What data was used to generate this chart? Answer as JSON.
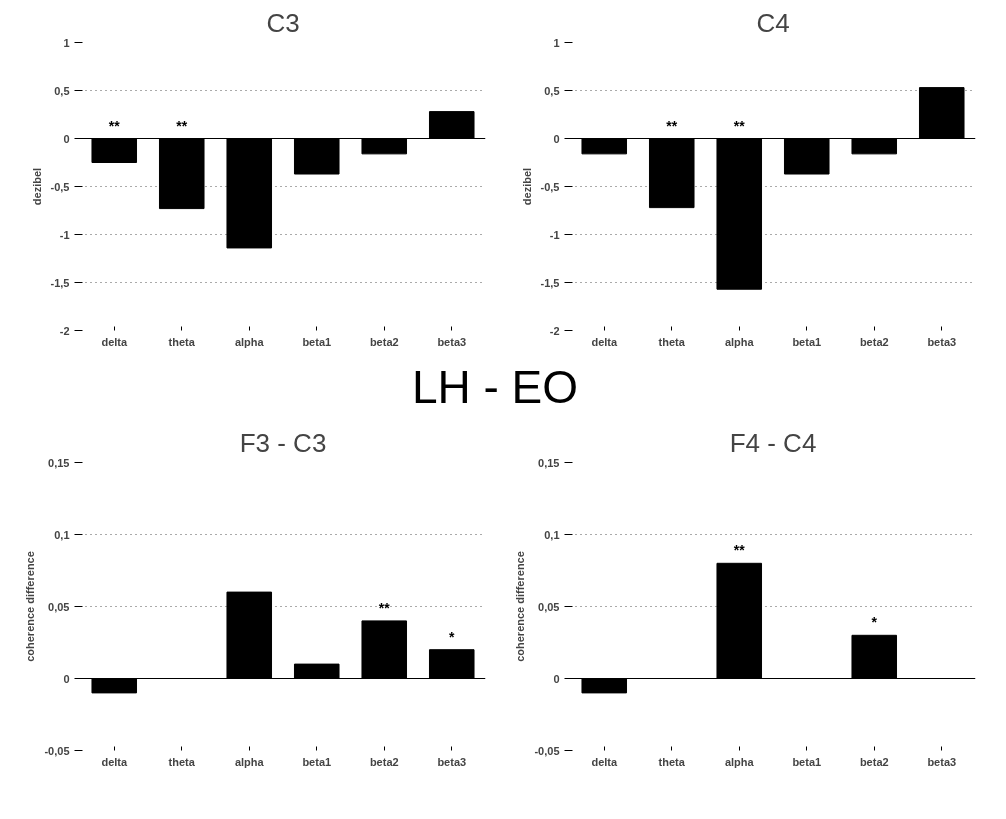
{
  "chart_data": [
    {
      "type": "bar",
      "title": "C3",
      "ylabel": "dezibel",
      "categories": [
        "delta",
        "theta",
        "alpha",
        "beta1",
        "beta2",
        "beta3"
      ],
      "values": [
        -0.25,
        -0.73,
        -1.14,
        -0.37,
        -0.16,
        0.28
      ],
      "color": "#000000",
      "ylim": [
        -2,
        1
      ],
      "yticks": [
        -2,
        {
          "value": -1.5,
          "label": "-1,5"
        },
        -1,
        {
          "value": -0.5,
          "label": "-0,5"
        },
        0,
        {
          "value": 0.5,
          "label": "0,5"
        },
        1
      ],
      "grid": "y",
      "ref_lines": [
        {
          "axis": "y",
          "value": 0,
          "color": "#000000"
        }
      ],
      "annotations": [
        {
          "text": "**",
          "x": "delta",
          "y": 0
        },
        {
          "text": "**",
          "x": "theta",
          "y": 0
        }
      ]
    },
    {
      "type": "bar",
      "title": "C4",
      "ylabel": "dezibel",
      "categories": [
        "delta",
        "theta",
        "alpha",
        "beta1",
        "beta2",
        "beta3"
      ],
      "values": [
        -0.16,
        -0.72,
        -1.57,
        -0.37,
        -0.16,
        0.53
      ],
      "color": "#000000",
      "ylim": [
        -2,
        1
      ],
      "yticks": [
        -2,
        {
          "value": -1.5,
          "label": "-1,5"
        },
        -1,
        {
          "value": -0.5,
          "label": "-0,5"
        },
        0,
        {
          "value": 0.5,
          "label": "0,5"
        },
        1
      ],
      "grid": "y",
      "ref_lines": [
        {
          "axis": "y",
          "value": 0,
          "color": "#000000"
        }
      ],
      "annotations": [
        {
          "text": "**",
          "x": "theta",
          "y": 0
        },
        {
          "text": "**",
          "x": "alpha",
          "y": 0
        }
      ]
    },
    {
      "type": "bar",
      "title": "F3 - C3",
      "ylabel": "coherence difference",
      "categories": [
        "delta",
        "theta",
        "alpha",
        "beta1",
        "beta2",
        "beta3"
      ],
      "values": [
        -0.01,
        0,
        0.06,
        0.01,
        0.04,
        0.02
      ],
      "color": "#000000",
      "ylim": [
        -0.05,
        0.15
      ],
      "yticks": [
        {
          "value": -0.05,
          "label": "-0,05"
        },
        0,
        {
          "value": 0.05,
          "label": "0,05"
        },
        {
          "value": 0.1,
          "label": "0,1"
        },
        {
          "value": 0.15,
          "label": "0,15"
        }
      ],
      "grid": "y",
      "ref_lines": [
        {
          "axis": "y",
          "value": 0,
          "color": "#000000"
        }
      ],
      "annotations": [
        "LH - EO",
        {
          "text": "**",
          "x": "beta2",
          "y": 0.04
        },
        {
          "text": "*",
          "x": "beta3",
          "y": 0.02
        }
      ]
    },
    {
      "type": "bar",
      "title": "F4 - C4",
      "ylabel": "coherence difference",
      "categories": [
        "delta",
        "theta",
        "alpha",
        "beta1",
        "beta2",
        "beta3"
      ],
      "values": [
        -0.01,
        0,
        0.08,
        0,
        0.03,
        0
      ],
      "color": "#000000",
      "ylim": [
        -0.05,
        0.15
      ],
      "yticks": [
        {
          "value": -0.05,
          "label": "-0,05"
        },
        0,
        {
          "value": 0.05,
          "label": "0,05"
        },
        {
          "value": 0.1,
          "label": "0,1"
        },
        {
          "value": 0.15,
          "label": "0,15"
        }
      ],
      "grid": "y",
      "ref_lines": [
        {
          "axis": "y",
          "value": 0,
          "color": "#000000"
        }
      ],
      "annotations": [
        {
          "text": "**",
          "x": "alpha",
          "y": 0.08
        },
        {
          "text": "*",
          "x": "beta2",
          "y": 0.03
        }
      ]
    }
  ]
}
